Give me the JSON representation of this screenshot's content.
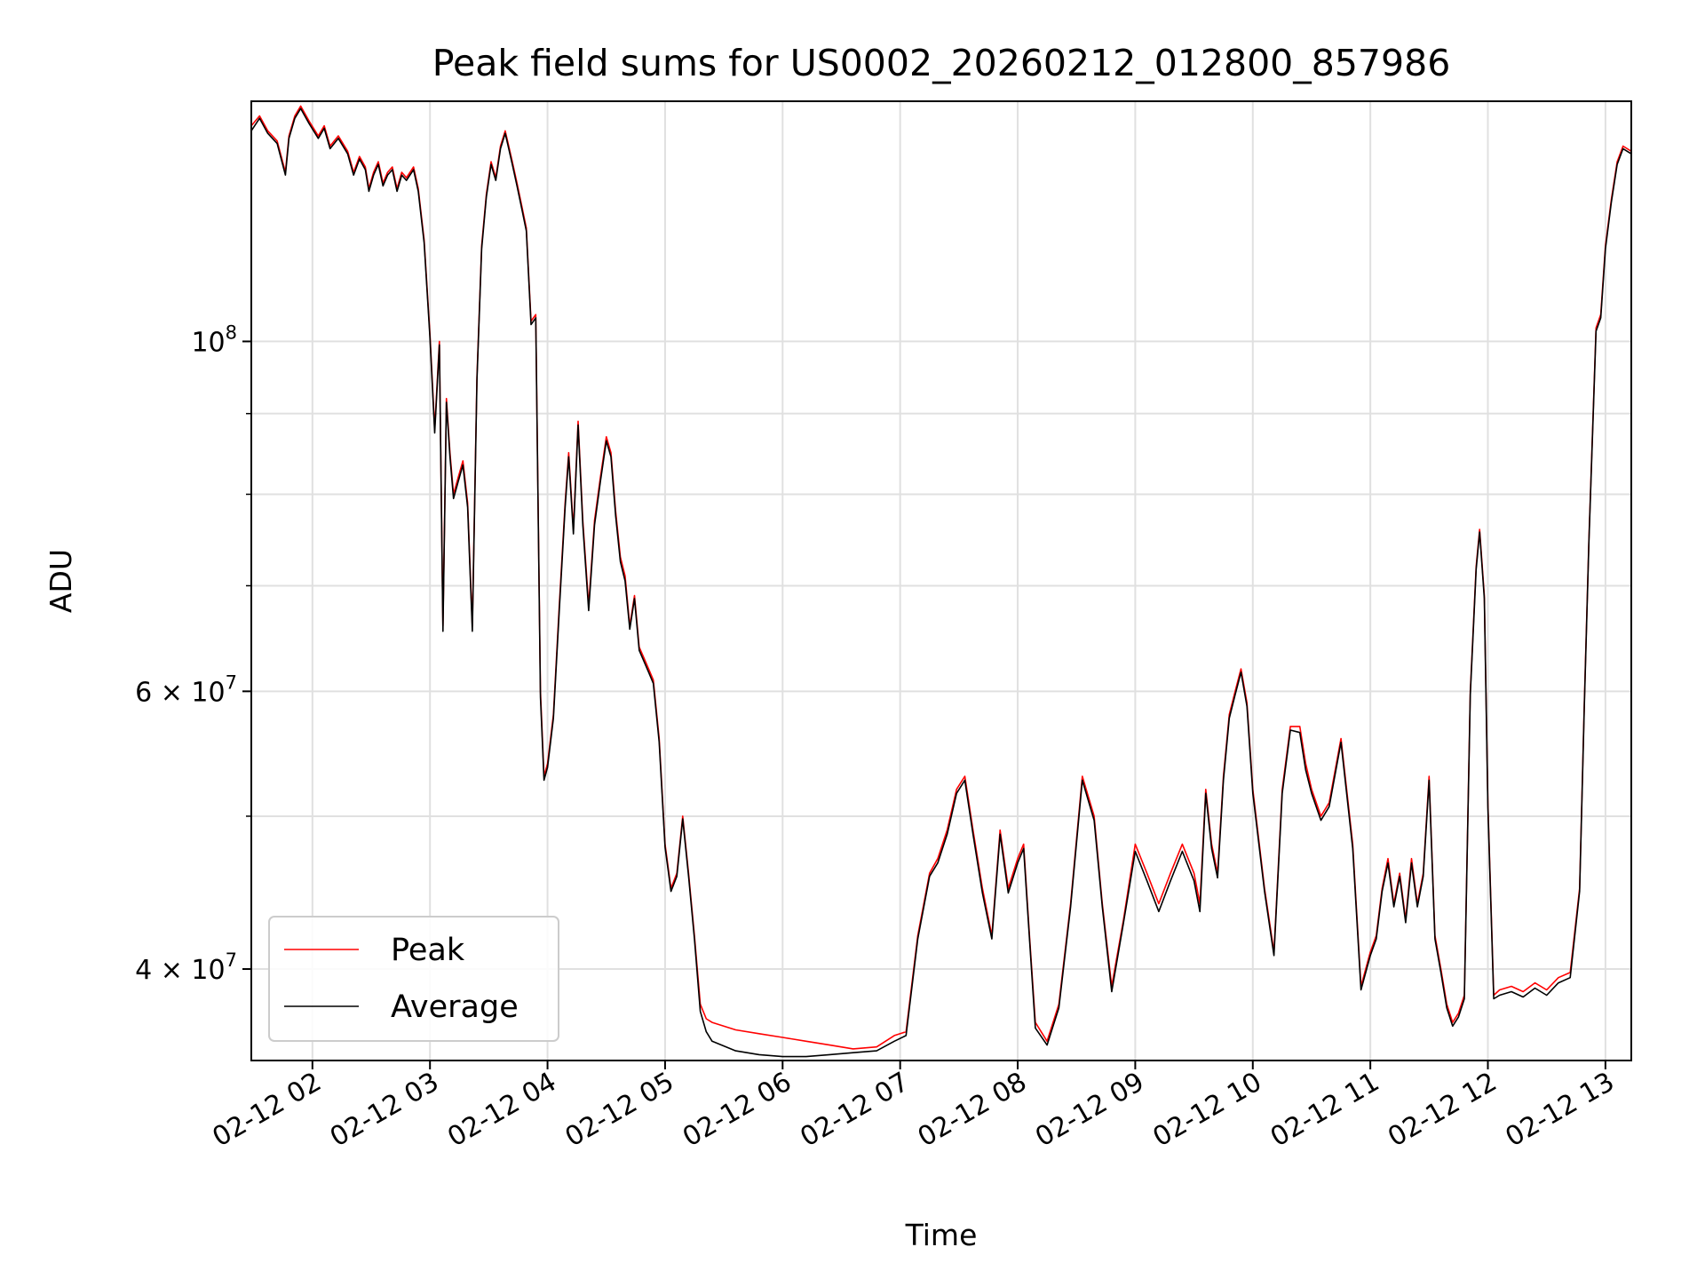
{
  "chart_data": {
    "type": "line",
    "title": "Peak field sums for US0002_20260212_012800_857986",
    "xlabel": "Time",
    "ylabel": "ADU",
    "x_unit": "hours (timestamp 02-12 HH)",
    "xlim": [
      1.48,
      13.22
    ],
    "ylim": [
      35000000.0,
      142000000.0
    ],
    "yscale": "log",
    "grid": true,
    "legend_position": "lower-left",
    "x_ticks": [
      {
        "value": 2,
        "label": "02-12 02"
      },
      {
        "value": 3,
        "label": "02-12 03"
      },
      {
        "value": 4,
        "label": "02-12 04"
      },
      {
        "value": 5,
        "label": "02-12 05"
      },
      {
        "value": 6,
        "label": "02-12 06"
      },
      {
        "value": 7,
        "label": "02-12 07"
      },
      {
        "value": 8,
        "label": "02-12 08"
      },
      {
        "value": 9,
        "label": "02-12 09"
      },
      {
        "value": 10,
        "label": "02-12 10"
      },
      {
        "value": 11,
        "label": "02-12 11"
      },
      {
        "value": 12,
        "label": "02-12 12"
      },
      {
        "value": 13,
        "label": "02-12 13"
      }
    ],
    "y_ticks_major": [
      {
        "value": 40000000,
        "label_base": "4 × 10",
        "label_exp": "7"
      },
      {
        "value": 60000000,
        "label_base": "6 × 10",
        "label_exp": "7"
      },
      {
        "value": 100000000,
        "label_base": "10",
        "label_exp": "8"
      }
    ],
    "y_ticks_minor": [
      50000000,
      70000000,
      80000000,
      90000000
    ],
    "series": [
      {
        "name": "Peak",
        "color": "#ff0000",
        "x": [
          1.48,
          1.55,
          1.62,
          1.7,
          1.77,
          1.8,
          1.85,
          1.9,
          1.97,
          2.05,
          2.1,
          2.15,
          2.22,
          2.3,
          2.35,
          2.4,
          2.45,
          2.48,
          2.52,
          2.56,
          2.6,
          2.64,
          2.68,
          2.72,
          2.76,
          2.8,
          2.86,
          2.9,
          2.95,
          3.0,
          3.04,
          3.08,
          3.11,
          3.14,
          3.17,
          3.2,
          3.24,
          3.28,
          3.32,
          3.36,
          3.4,
          3.44,
          3.48,
          3.52,
          3.56,
          3.6,
          3.64,
          3.67,
          3.7,
          3.74,
          3.78,
          3.82,
          3.86,
          3.9,
          3.94,
          3.97,
          4.0,
          4.05,
          4.1,
          4.15,
          4.18,
          4.22,
          4.26,
          4.3,
          4.35,
          4.4,
          4.45,
          4.5,
          4.54,
          4.58,
          4.62,
          4.66,
          4.7,
          4.74,
          4.78,
          4.82,
          4.86,
          4.9,
          4.95,
          5.0,
          5.05,
          5.1,
          5.15,
          5.2,
          5.25,
          5.3,
          5.35,
          5.4,
          5.6,
          5.8,
          6.0,
          6.2,
          6.4,
          6.6,
          6.8,
          6.95,
          7.05,
          7.15,
          7.25,
          7.32,
          7.4,
          7.48,
          7.55,
          7.62,
          7.7,
          7.78,
          7.85,
          7.92,
          8.0,
          8.05,
          8.1,
          8.15,
          8.25,
          8.35,
          8.45,
          8.55,
          8.65,
          8.72,
          8.8,
          8.9,
          9.0,
          9.1,
          9.2,
          9.3,
          9.4,
          9.5,
          9.55,
          9.6,
          9.65,
          9.7,
          9.75,
          9.8,
          9.85,
          9.9,
          9.95,
          10.0,
          10.1,
          10.18,
          10.25,
          10.32,
          10.4,
          10.45,
          10.5,
          10.58,
          10.65,
          10.75,
          10.85,
          10.92,
          11.0,
          11.05,
          11.1,
          11.15,
          11.2,
          11.25,
          11.3,
          11.35,
          11.4,
          11.45,
          11.5,
          11.55,
          11.6,
          11.65,
          11.7,
          11.75,
          11.8,
          11.85,
          11.9,
          11.93,
          11.97,
          12.0,
          12.05,
          12.1,
          12.2,
          12.3,
          12.4,
          12.5,
          12.6,
          12.7,
          12.78,
          12.82,
          12.86,
          12.92,
          12.96,
          13.0,
          13.05,
          13.1,
          13.15,
          13.22
        ],
        "y": [
          137000000,
          139000000,
          136000000,
          134000000,
          128000000,
          135000000,
          139000000,
          141000000,
          138000000,
          135000000,
          137000000,
          133000000,
          135000000,
          132000000,
          128000000,
          131000000,
          129000000,
          125000000,
          128000000,
          130000000,
          126000000,
          128000000,
          129000000,
          125000000,
          128000000,
          127000000,
          129000000,
          125000000,
          116000000,
          101000000,
          88000000,
          100000000,
          66000000,
          92000000,
          85000000,
          80000000,
          82000000,
          84000000,
          79000000,
          66000000,
          95000000,
          115000000,
          124000000,
          130000000,
          127000000,
          133000000,
          136000000,
          133000000,
          130000000,
          126000000,
          122000000,
          118000000,
          103000000,
          104000000,
          60000000,
          53000000,
          54000000,
          58000000,
          68000000,
          79000000,
          85000000,
          76000000,
          89000000,
          77000000,
          68000000,
          77000000,
          82000000,
          87000000,
          85000000,
          78000000,
          73000000,
          71000000,
          66000000,
          69000000,
          64000000,
          63000000,
          62000000,
          61000000,
          56000000,
          48000000,
          45000000,
          46000000,
          50000000,
          46000000,
          42000000,
          38000000,
          37200000,
          37000000,
          36600000,
          36400000,
          36200000,
          36000000,
          35800000,
          35600000,
          35700000,
          36300000,
          36500000,
          42000000,
          46000000,
          47000000,
          49000000,
          52000000,
          53000000,
          49000000,
          45000000,
          42000000,
          49000000,
          45000000,
          47000000,
          48000000,
          42000000,
          37000000,
          36000000,
          38000000,
          44000000,
          53000000,
          50000000,
          44000000,
          39000000,
          43000000,
          48000000,
          46000000,
          44000000,
          46000000,
          48000000,
          46000000,
          44000000,
          52000000,
          48000000,
          46000000,
          53000000,
          58000000,
          60000000,
          62000000,
          59000000,
          52000000,
          45000000,
          41000000,
          52000000,
          57000000,
          57000000,
          54000000,
          52000000,
          50000000,
          51000000,
          56000000,
          48000000,
          39000000,
          41000000,
          42000000,
          45000000,
          47000000,
          44000000,
          46000000,
          43000000,
          47000000,
          44000000,
          46000000,
          53000000,
          42000000,
          40000000,
          38000000,
          37000000,
          37500000,
          38500000,
          60000000,
          72000000,
          76000000,
          69000000,
          51000000,
          38500000,
          38800000,
          39000000,
          38700000,
          39200000,
          38800000,
          39500000,
          39800000,
          45000000,
          59000000,
          75000000,
          102000000,
          104000000,
          115000000,
          123000000,
          130000000,
          133000000,
          132000000
        ]
      },
      {
        "name": "Average",
        "color": "#000000",
        "x": [
          1.48,
          1.55,
          1.62,
          1.7,
          1.77,
          1.8,
          1.85,
          1.9,
          1.97,
          2.05,
          2.1,
          2.15,
          2.22,
          2.3,
          2.35,
          2.4,
          2.45,
          2.48,
          2.52,
          2.56,
          2.6,
          2.64,
          2.68,
          2.72,
          2.76,
          2.8,
          2.86,
          2.9,
          2.95,
          3.0,
          3.04,
          3.08,
          3.11,
          3.14,
          3.17,
          3.2,
          3.24,
          3.28,
          3.32,
          3.36,
          3.4,
          3.44,
          3.48,
          3.52,
          3.56,
          3.6,
          3.64,
          3.67,
          3.7,
          3.74,
          3.78,
          3.82,
          3.86,
          3.9,
          3.94,
          3.97,
          4.0,
          4.05,
          4.1,
          4.15,
          4.18,
          4.22,
          4.26,
          4.3,
          4.35,
          4.4,
          4.45,
          4.5,
          4.54,
          4.58,
          4.62,
          4.66,
          4.7,
          4.74,
          4.78,
          4.82,
          4.86,
          4.9,
          4.95,
          5.0,
          5.05,
          5.1,
          5.15,
          5.2,
          5.25,
          5.3,
          5.35,
          5.4,
          5.6,
          5.8,
          6.0,
          6.2,
          6.4,
          6.6,
          6.8,
          6.95,
          7.05,
          7.15,
          7.25,
          7.32,
          7.4,
          7.48,
          7.55,
          7.62,
          7.7,
          7.78,
          7.85,
          7.92,
          8.0,
          8.05,
          8.1,
          8.15,
          8.25,
          8.35,
          8.45,
          8.55,
          8.65,
          8.72,
          8.8,
          8.9,
          9.0,
          9.1,
          9.2,
          9.3,
          9.4,
          9.5,
          9.55,
          9.6,
          9.65,
          9.7,
          9.75,
          9.8,
          9.85,
          9.9,
          9.95,
          10.0,
          10.1,
          10.18,
          10.25,
          10.32,
          10.4,
          10.45,
          10.5,
          10.58,
          10.65,
          10.75,
          10.85,
          10.92,
          11.0,
          11.05,
          11.1,
          11.15,
          11.2,
          11.25,
          11.3,
          11.35,
          11.4,
          11.45,
          11.5,
          11.55,
          11.6,
          11.65,
          11.7,
          11.75,
          11.8,
          11.85,
          11.9,
          11.93,
          11.97,
          12.0,
          12.05,
          12.1,
          12.2,
          12.3,
          12.4,
          12.5,
          12.6,
          12.7,
          12.78,
          12.82,
          12.86,
          12.92,
          12.96,
          13.0,
          13.05,
          13.1,
          13.15,
          13.22
        ],
        "y": [
          136000000,
          138500000,
          135500000,
          133500000,
          127500000,
          134500000,
          138500000,
          140500000,
          137500000,
          134500000,
          136500000,
          132500000,
          134500000,
          131500000,
          127500000,
          130500000,
          128500000,
          124500000,
          127500000,
          129500000,
          125500000,
          127500000,
          128500000,
          124500000,
          127500000,
          126500000,
          128500000,
          124500000,
          115500000,
          100500000,
          87500000,
          99500000,
          65500000,
          91500000,
          84500000,
          79500000,
          81500000,
          83500000,
          78500000,
          65500000,
          94500000,
          114500000,
          123500000,
          129500000,
          126500000,
          132500000,
          135500000,
          132500000,
          129500000,
          125500000,
          121500000,
          117500000,
          102500000,
          103500000,
          59500000,
          52700000,
          53700000,
          57700000,
          67500000,
          78500000,
          84500000,
          75500000,
          88500000,
          76500000,
          67500000,
          76500000,
          81500000,
          86500000,
          84500000,
          77500000,
          72500000,
          70500000,
          65700000,
          68700000,
          63700000,
          62700000,
          61700000,
          60700000,
          55700000,
          47800000,
          44800000,
          45800000,
          49800000,
          45800000,
          41800000,
          37600000,
          36500000,
          36000000,
          35500000,
          35300000,
          35200000,
          35200000,
          35300000,
          35400000,
          35500000,
          36000000,
          36300000,
          41800000,
          45800000,
          46700000,
          48700000,
          51700000,
          52700000,
          48700000,
          44700000,
          41800000,
          48700000,
          44700000,
          46700000,
          47700000,
          41800000,
          36700000,
          35800000,
          37800000,
          43800000,
          52700000,
          49700000,
          43800000,
          38700000,
          42800000,
          47500000,
          45500000,
          43500000,
          45500000,
          47500000,
          45500000,
          43500000,
          51700000,
          47700000,
          45700000,
          52700000,
          57700000,
          59700000,
          61700000,
          58700000,
          51700000,
          44800000,
          40800000,
          51700000,
          56700000,
          56500000,
          53500000,
          51700000,
          49700000,
          50700000,
          55700000,
          47700000,
          38800000,
          40800000,
          41800000,
          44800000,
          46700000,
          43800000,
          45800000,
          42800000,
          46700000,
          43800000,
          45800000,
          52700000,
          41800000,
          39800000,
          37800000,
          36800000,
          37300000,
          38300000,
          59700000,
          71700000,
          75700000,
          68700000,
          50700000,
          38300000,
          38500000,
          38700000,
          38400000,
          38900000,
          38500000,
          39200000,
          39500000,
          44800000,
          58700000,
          74700000,
          101500000,
          103500000,
          114500000,
          122500000,
          129500000,
          132500000,
          131500000
        ]
      }
    ]
  }
}
